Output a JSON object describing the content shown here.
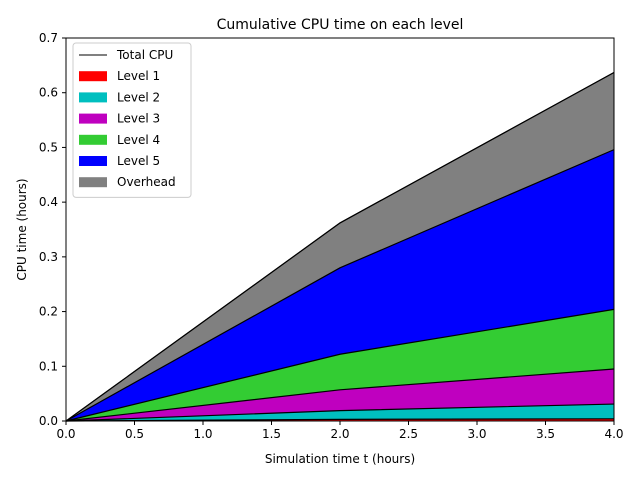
{
  "chart_data": {
    "type": "area",
    "title": "Cumulative CPU time on each level",
    "xlabel": "Simulation time t (hours)",
    "ylabel": "CPU time (hours)",
    "x": [
      0.0,
      2.0,
      4.0
    ],
    "xlim": [
      0.0,
      4.0
    ],
    "ylim": [
      0.0,
      0.7
    ],
    "xticks": [
      "0.0",
      "0.5",
      "1.0",
      "1.5",
      "2.0",
      "2.5",
      "3.0",
      "3.5",
      "4.0"
    ],
    "yticks": [
      "0.0",
      "0.1",
      "0.2",
      "0.3",
      "0.4",
      "0.5",
      "0.6",
      "0.7"
    ],
    "stacked": true,
    "grid": false,
    "legend_position": "upper-left",
    "total_line": {
      "name": "Total CPU",
      "values": [
        0.0,
        0.362,
        0.637
      ],
      "color": "#000000"
    },
    "series": [
      {
        "name": "Level 1",
        "values": [
          0.0,
          0.003,
          0.004
        ],
        "color": "#ff0000"
      },
      {
        "name": "Level 2",
        "values": [
          0.0,
          0.016,
          0.027
        ],
        "color": "#00bfbf"
      },
      {
        "name": "Level 3",
        "values": [
          0.0,
          0.038,
          0.064
        ],
        "color": "#bf00bf"
      },
      {
        "name": "Level 4",
        "values": [
          0.0,
          0.065,
          0.109
        ],
        "color": "#33cc33"
      },
      {
        "name": "Level 5",
        "values": [
          0.0,
          0.158,
          0.292
        ],
        "color": "#0000ff"
      },
      {
        "name": "Overhead",
        "values": [
          0.0,
          0.082,
          0.141
        ],
        "color": "#808080"
      }
    ]
  }
}
